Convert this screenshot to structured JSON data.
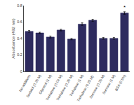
{
  "chart_data": {
    "type": "bar",
    "categories": [
      "No additives",
      "Sorbitol (0.25 M)",
      "Glycerol (1 M)",
      "Trehalose (0.04 M)",
      "Trehalose (0.25 M)",
      "Trehalose (1 M)",
      "Trehalose (0.25 M) ",
      "Sucrose (0.25 M)",
      "Sucrose (1 M)",
      "BSA (0.5%)"
    ],
    "values": [
      0.487,
      0.468,
      0.418,
      0.503,
      0.393,
      0.575,
      0.622,
      0.402,
      0.402,
      0.71
    ],
    "errors": [
      0.01,
      0.008,
      0.012,
      0.01,
      0.008,
      0.015,
      0.012,
      0.01,
      0.01,
      0.015
    ],
    "color": "#2e2b5f",
    "y_label": "Absorbance (492 nm)",
    "ylim": [
      0.0,
      0.8
    ],
    "yticks": [
      0.0,
      0.2,
      0.4,
      0.6,
      0.8
    ],
    "annotations": [
      {
        "category": "BSA (0.5%)",
        "text": "*"
      }
    ],
    "grid": false
  }
}
